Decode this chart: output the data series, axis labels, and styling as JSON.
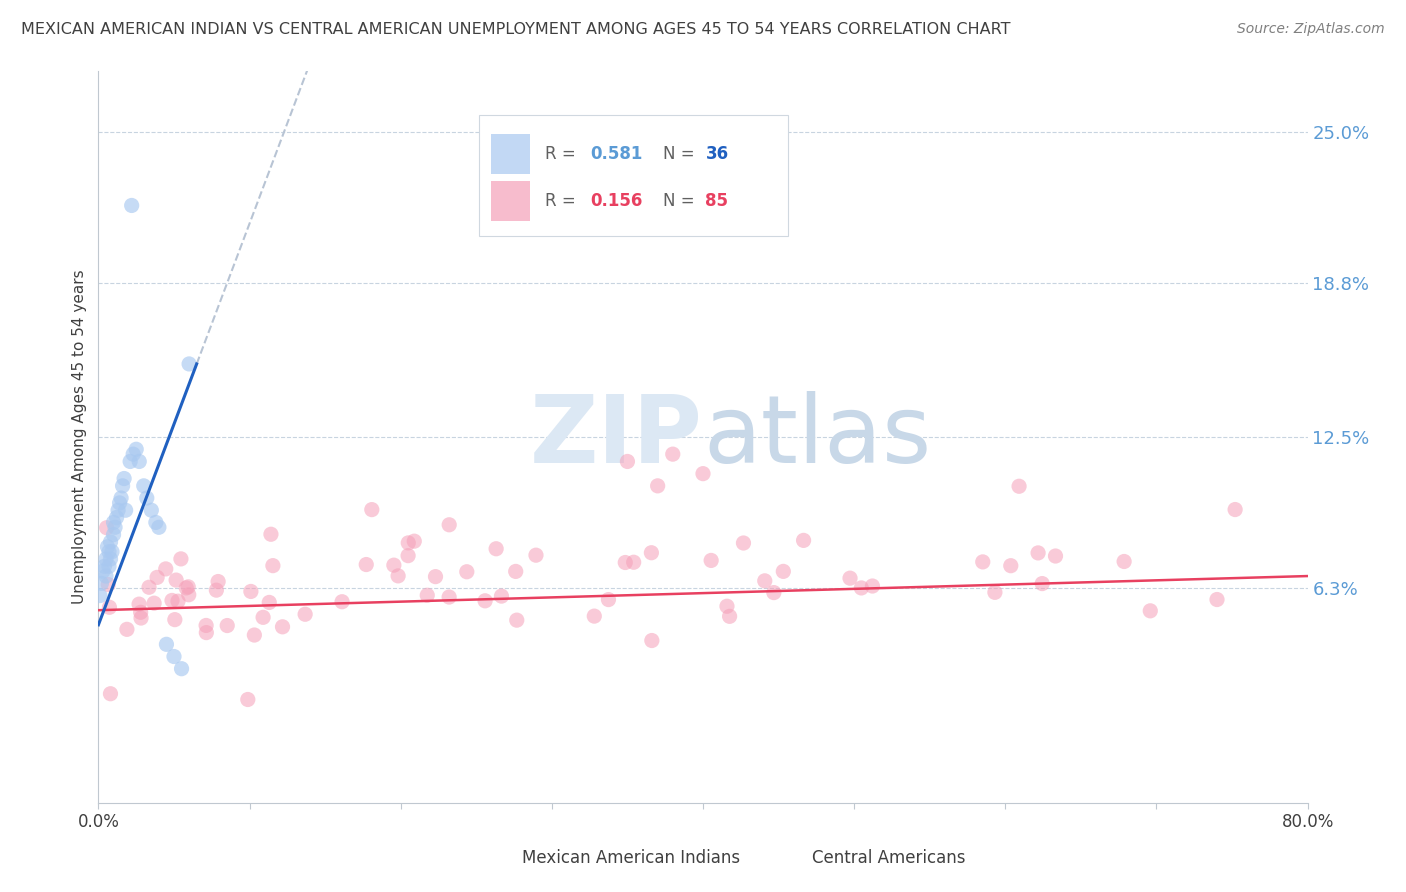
{
  "title": "MEXICAN AMERICAN INDIAN VS CENTRAL AMERICAN UNEMPLOYMENT AMONG AGES 45 TO 54 YEARS CORRELATION CHART",
  "source": "Source: ZipAtlas.com",
  "ylabel": "Unemployment Among Ages 45 to 54 years",
  "ytick_labels": [
    "25.0%",
    "18.8%",
    "12.5%",
    "6.3%"
  ],
  "ytick_values": [
    0.25,
    0.188,
    0.125,
    0.063
  ],
  "xmin": 0.0,
  "xmax": 0.8,
  "ymin": -0.025,
  "ymax": 0.275,
  "blue_R": 0.581,
  "blue_N": 36,
  "pink_R": 0.156,
  "pink_N": 85,
  "legend_label_blue": "Mexican American Indians",
  "legend_label_pink": "Central Americans",
  "blue_color": "#a8c8f0",
  "pink_color": "#f5a0b8",
  "blue_line_color": "#2060c0",
  "pink_line_color": "#e84060",
  "dashed_line_color": "#b8c4d4",
  "watermark_color": "#dce8f4",
  "title_color": "#404040",
  "right_axis_color": "#5b9bd5",
  "source_color": "#808080",
  "legend_R_color": "#5b9bd5",
  "legend_N_blue_color": "#2060c0",
  "legend_N_pink_color": "#e84060",
  "grid_color": "#c8d4e0",
  "spine_color": "#c0c8d0"
}
